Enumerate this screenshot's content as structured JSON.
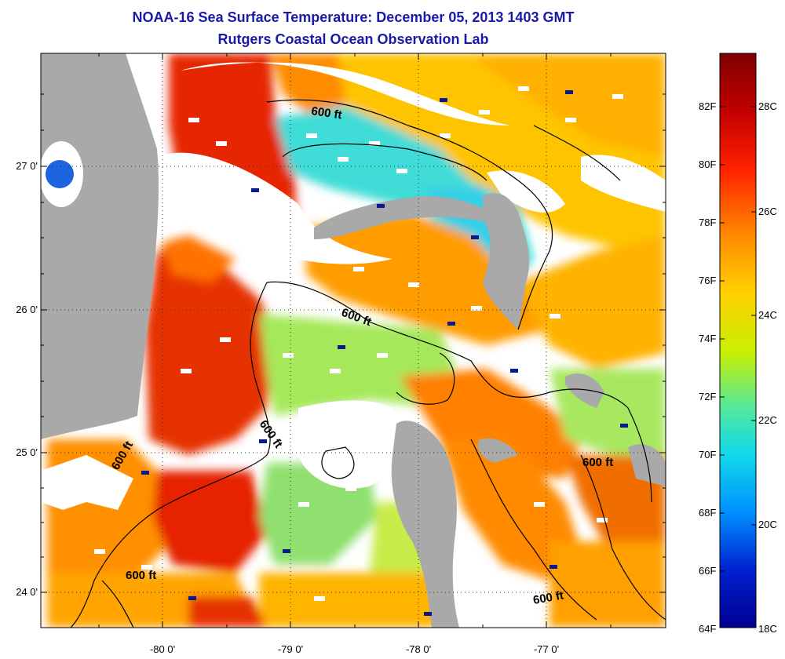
{
  "title": {
    "line1": "NOAA-16 Sea Surface Temperature:  December 05, 2013 1403 GMT",
    "line2": "Rutgers Coastal Ocean Observation Lab"
  },
  "map": {
    "lat_ticks": [
      "27 0'",
      "26 0'",
      "25 0'",
      "24 0'"
    ],
    "lon_ticks": [
      "-80 0'",
      "-79 0'",
      "-78 0'",
      "-77 0'"
    ],
    "contour_label": "600 ft",
    "land_color": "#a9a9a9",
    "cloud_color": "#ffffff"
  },
  "colorbar": {
    "fahrenheit_labels": [
      "82F",
      "80F",
      "78F",
      "76F",
      "74F",
      "72F",
      "70F",
      "68F",
      "66F",
      "64F"
    ],
    "celsius_labels": [
      "28C",
      "26C",
      "24C",
      "22C",
      "20C",
      "18C"
    ],
    "colors": [
      "#7f0000",
      "#d40000",
      "#ff4a00",
      "#ff9a00",
      "#ffd200",
      "#c8f000",
      "#6ef06e",
      "#1ee0e0",
      "#0090ff",
      "#0020d0",
      "#00008f"
    ]
  }
}
